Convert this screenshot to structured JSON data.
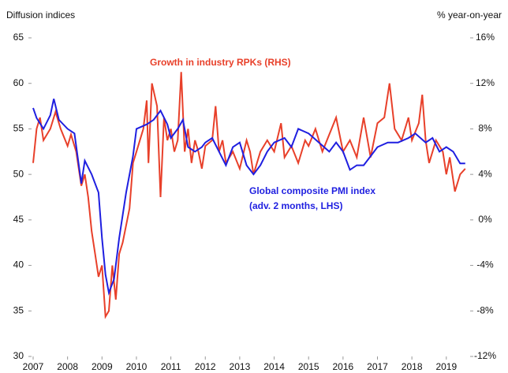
{
  "chart_data": {
    "type": "line",
    "y_label": "Diffusion indices",
    "y2_label": "% year-on-year",
    "annotations": [
      "(adv. 2 months, LHS)"
    ],
    "xlim": [
      2007,
      2019.6
    ],
    "xticks": [
      2007,
      2008,
      2009,
      2010,
      2011,
      2012,
      2013,
      2014,
      2015,
      2016,
      2017,
      2018,
      2019
    ],
    "ylim": [
      30,
      65
    ],
    "yticks": [
      30,
      35,
      40,
      45,
      50,
      55,
      60,
      65
    ],
    "y2lim": [
      -12,
      16
    ],
    "y2ticks": [
      {
        "value": -12,
        "label": "-12%"
      },
      {
        "value": -8,
        "label": "-8%"
      },
      {
        "value": -4,
        "label": "-4%"
      },
      {
        "value": 0,
        "label": "0%"
      },
      {
        "value": 4,
        "label": "4%"
      },
      {
        "value": 8,
        "label": "8%"
      },
      {
        "value": 12,
        "label": "12%"
      },
      {
        "value": 16,
        "label": "16%"
      }
    ],
    "series": [
      {
        "name": "Global composite PMI index",
        "color": "#1f1fe0",
        "x": [
          2007.0,
          2007.1,
          2007.3,
          2007.5,
          2007.6,
          2007.75,
          2008.0,
          2008.2,
          2008.4,
          2008.5,
          2008.7,
          2008.9,
          2009.0,
          2009.1,
          2009.2,
          2009.35,
          2009.5,
          2009.7,
          2009.9,
          2010.0,
          2010.3,
          2010.5,
          2010.7,
          2010.9,
          2011.0,
          2011.2,
          2011.35,
          2011.5,
          2011.7,
          2011.9,
          2012.0,
          2012.2,
          2012.4,
          2012.6,
          2012.8,
          2013.0,
          2013.2,
          2013.4,
          2013.6,
          2013.8,
          2014.0,
          2014.3,
          2014.5,
          2014.7,
          2015.0,
          2015.3,
          2015.6,
          2015.8,
          2016.0,
          2016.2,
          2016.4,
          2016.6,
          2016.8,
          2017.0,
          2017.3,
          2017.6,
          2017.9,
          2018.1,
          2018.4,
          2018.6,
          2018.8,
          2019.0,
          2019.2,
          2019.4,
          2019.55
        ],
        "values": [
          57.3,
          56.2,
          55,
          56.5,
          58.3,
          56,
          55,
          54.5,
          49,
          51.5,
          50,
          48,
          43,
          39,
          37,
          38.5,
          43,
          48,
          52,
          55,
          55.5,
          56,
          57,
          55.5,
          54,
          55,
          56,
          53,
          52.5,
          53,
          53.5,
          54,
          52.5,
          51,
          53,
          53.5,
          51,
          50,
          51,
          52.5,
          53.5,
          54,
          53,
          55,
          54.5,
          53.5,
          52.5,
          53.5,
          52.5,
          50.5,
          51,
          51,
          52,
          53,
          53.5,
          53.5,
          54,
          54.5,
          53.5,
          54,
          52.5,
          53,
          52.5,
          51.2,
          51.2
        ]
      },
      {
        "name": "Growth in industry RPKs (RHS)",
        "color": "#e8402a",
        "axis": "y2",
        "x": [
          2007.0,
          2007.1,
          2007.2,
          2007.3,
          2007.5,
          2007.65,
          2007.8,
          2008.0,
          2008.1,
          2008.25,
          2008.4,
          2008.5,
          2008.6,
          2008.7,
          2008.8,
          2008.9,
          2009.0,
          2009.1,
          2009.2,
          2009.3,
          2009.4,
          2009.5,
          2009.6,
          2009.8,
          2009.9,
          2010.0,
          2010.2,
          2010.3,
          2010.35,
          2010.45,
          2010.6,
          2010.7,
          2010.8,
          2010.9,
          2011.0,
          2011.1,
          2011.2,
          2011.3,
          2011.4,
          2011.5,
          2011.6,
          2011.7,
          2011.8,
          2011.9,
          2012.0,
          2012.2,
          2012.3,
          2012.4,
          2012.5,
          2012.6,
          2012.8,
          2013.0,
          2013.2,
          2013.3,
          2013.4,
          2013.6,
          2013.8,
          2014.0,
          2014.2,
          2014.3,
          2014.5,
          2014.7,
          2014.9,
          2015.0,
          2015.2,
          2015.4,
          2015.6,
          2015.8,
          2016.0,
          2016.2,
          2016.4,
          2016.6,
          2016.8,
          2017.0,
          2017.2,
          2017.35,
          2017.5,
          2017.7,
          2017.9,
          2018.0,
          2018.2,
          2018.3,
          2018.4,
          2018.5,
          2018.7,
          2018.9,
          2019.0,
          2019.1,
          2019.25,
          2019.4,
          2019.55
        ],
        "values": [
          5,
          8,
          9,
          7,
          8,
          9.5,
          8,
          6.5,
          7.5,
          6,
          3,
          4,
          2,
          -1,
          -3,
          -5,
          -4,
          -8.5,
          -8,
          -4,
          -7,
          -3,
          -2,
          1,
          5,
          6,
          8,
          10.5,
          5,
          12,
          10,
          2,
          9,
          7,
          8,
          6,
          7,
          13,
          6,
          8,
          5,
          7,
          6,
          4.5,
          6.5,
          7,
          10,
          6,
          7,
          5,
          6,
          4.5,
          7,
          6,
          4,
          6,
          7,
          6,
          8.5,
          5.5,
          6.5,
          5,
          7,
          6.5,
          8,
          6,
          7.5,
          9,
          6,
          7,
          5.5,
          9,
          5.5,
          8.5,
          9,
          12,
          8,
          7,
          9,
          7,
          8.5,
          11,
          7,
          5,
          7,
          6,
          4,
          5.5,
          2.5,
          4,
          4.5
        ]
      }
    ]
  }
}
